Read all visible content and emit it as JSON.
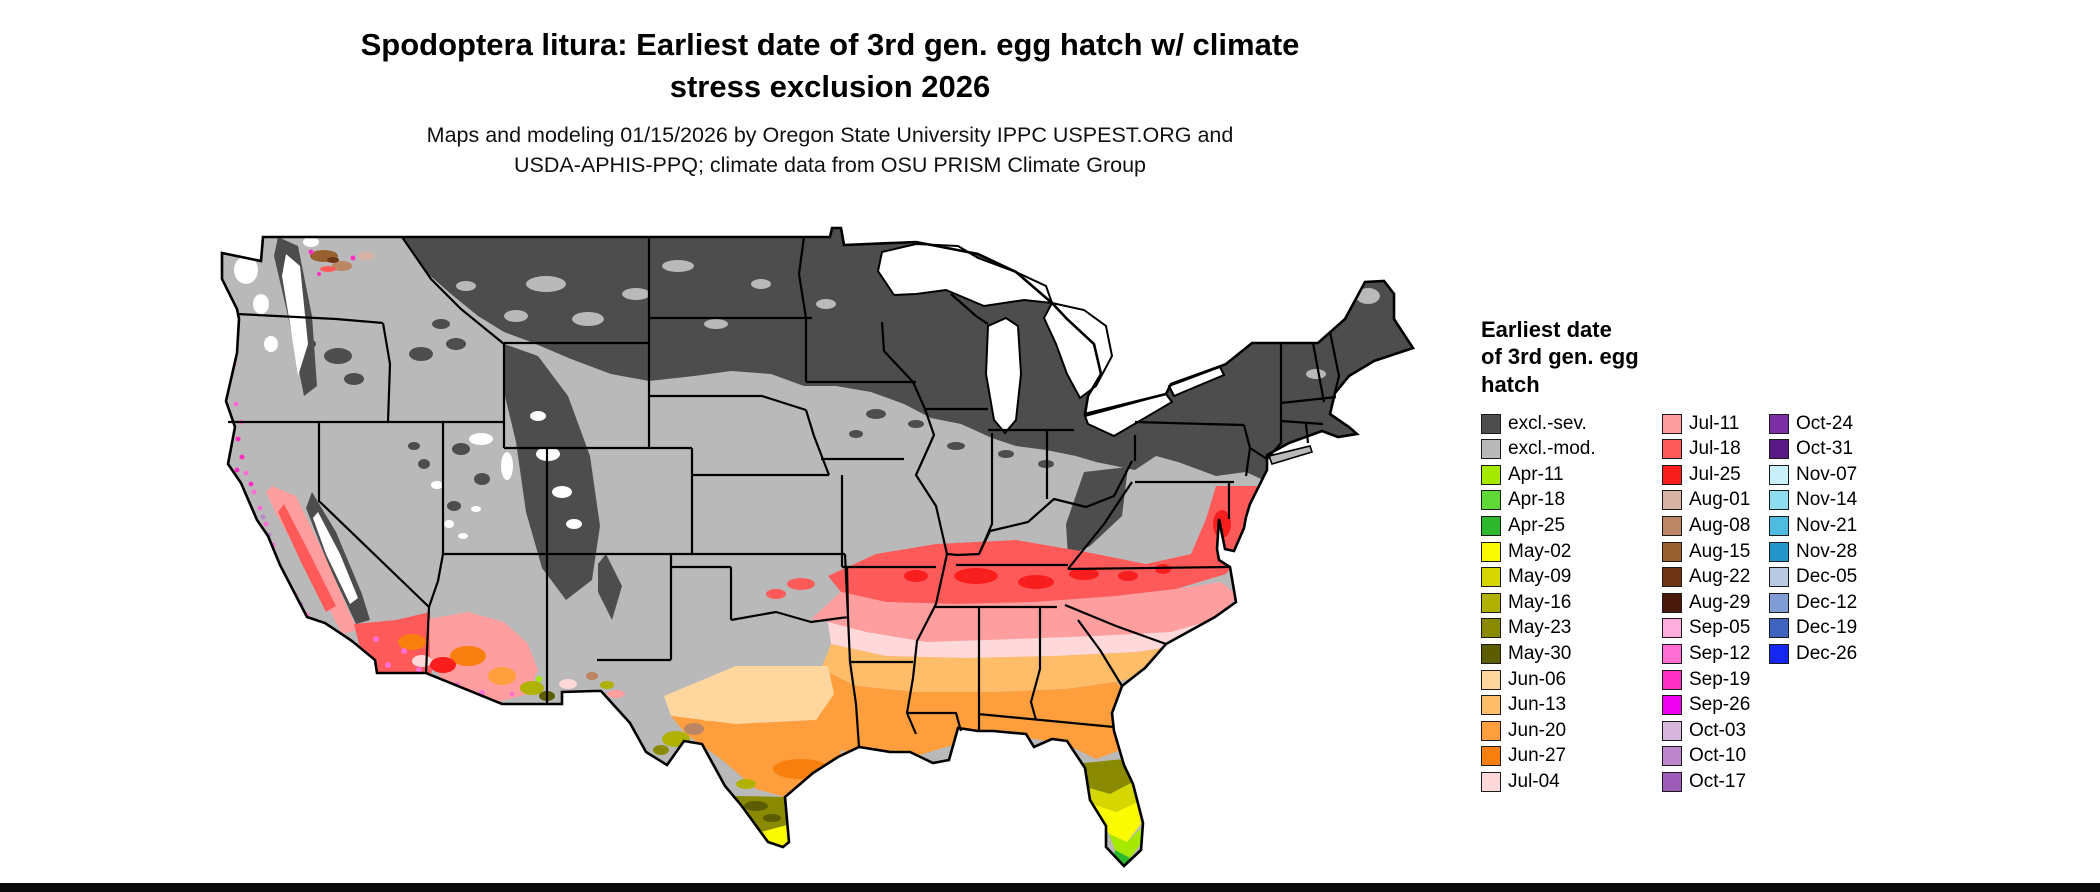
{
  "header": {
    "title_line1": "Spodoptera litura: Earliest date of 3rd gen. egg hatch w/ climate",
    "title_line2": "stress exclusion 2026",
    "subtitle_line1": "Maps and modeling 01/15/2026 by Oregon State University IPPC USPEST.ORG and",
    "subtitle_line2": "USDA-APHIS-PPQ; climate data from OSU PRISM Climate Group"
  },
  "legend": {
    "title_lines": [
      "Earliest date",
      "of 3rd gen. egg",
      "hatch"
    ],
    "columns": [
      {
        "items": [
          {
            "label": "excl.-sev.",
            "key": "excl_sev"
          },
          {
            "label": "excl.-mod.",
            "key": "excl_mod"
          },
          {
            "label": "Apr-11",
            "key": "apr11"
          },
          {
            "label": "Apr-18",
            "key": "apr18"
          },
          {
            "label": "Apr-25",
            "key": "apr25"
          },
          {
            "label": "May-02",
            "key": "may02"
          },
          {
            "label": "May-09",
            "key": "may09"
          },
          {
            "label": "May-16",
            "key": "may16"
          },
          {
            "label": "May-23",
            "key": "may23"
          },
          {
            "label": "May-30",
            "key": "may30"
          },
          {
            "label": "Jun-06",
            "key": "jun06"
          },
          {
            "label": "Jun-13",
            "key": "jun13"
          },
          {
            "label": "Jun-20",
            "key": "jun20"
          },
          {
            "label": "Jun-27",
            "key": "jun27"
          },
          {
            "label": "Jul-04",
            "key": "jul04"
          }
        ]
      },
      {
        "items": [
          {
            "label": "Jul-11",
            "key": "jul11"
          },
          {
            "label": "Jul-18",
            "key": "jul18"
          },
          {
            "label": "Jul-25",
            "key": "jul25"
          },
          {
            "label": "Aug-01",
            "key": "aug01"
          },
          {
            "label": "Aug-08",
            "key": "aug08"
          },
          {
            "label": "Aug-15",
            "key": "aug15"
          },
          {
            "label": "Aug-22",
            "key": "aug22"
          },
          {
            "label": "Aug-29",
            "key": "aug29"
          },
          {
            "label": "Sep-05",
            "key": "sep05"
          },
          {
            "label": "Sep-12",
            "key": "sep12"
          },
          {
            "label": "Sep-19",
            "key": "sep19"
          },
          {
            "label": "Sep-26",
            "key": "sep26"
          },
          {
            "label": "Oct-03",
            "key": "oct03"
          },
          {
            "label": "Oct-10",
            "key": "oct10"
          },
          {
            "label": "Oct-17",
            "key": "oct17"
          }
        ]
      },
      {
        "items": [
          {
            "label": "Oct-24",
            "key": "oct24"
          },
          {
            "label": "Oct-31",
            "key": "oct31"
          },
          {
            "label": "Nov-07",
            "key": "nov07"
          },
          {
            "label": "Nov-14",
            "key": "nov14"
          },
          {
            "label": "Nov-21",
            "key": "nov21"
          },
          {
            "label": "Nov-28",
            "key": "nov28"
          },
          {
            "label": "Dec-05",
            "key": "dec05"
          },
          {
            "label": "Dec-12",
            "key": "dec12"
          },
          {
            "label": "Dec-19",
            "key": "dec19"
          },
          {
            "label": "Dec-26",
            "key": "dec26"
          }
        ]
      }
    ]
  },
  "palette": {
    "excl_sev": "#4d4d4d",
    "excl_mod": "#b9b9b9",
    "apr11": "#a5e800",
    "apr18": "#5fd938",
    "apr25": "#2eb82e",
    "may02": "#fafa00",
    "may09": "#d6d600",
    "may16": "#b1b100",
    "may23": "#8a8a00",
    "may30": "#5c5c00",
    "jun06": "#ffd79e",
    "jun13": "#ffbc69",
    "jun20": "#ff9e3d",
    "jun27": "#f87e0e",
    "jul04": "#ffd9d9",
    "jul11": "#ff9e9e",
    "jul18": "#ff5a5a",
    "jul25": "#f81e1e",
    "aug01": "#d8b2a3",
    "aug08": "#bb8663",
    "aug15": "#98602f",
    "aug22": "#6f3517",
    "aug29": "#49190b",
    "sep05": "#ffaedd",
    "sep12": "#ff6ed0",
    "sep19": "#ff2fc4",
    "sep26": "#ef00ef",
    "oct03": "#d7b6dd",
    "oct10": "#bb86cb",
    "oct17": "#9c5cb8",
    "oct24": "#7c2fa5",
    "oct31": "#591a86",
    "nov07": "#c9f0fb",
    "nov14": "#8edcef",
    "nov21": "#4fbbdf",
    "nov28": "#2395c8",
    "dec05": "#bac9e2",
    "dec12": "#7f9cd4",
    "dec19": "#3f64c0",
    "dec26": "#1426f0"
  }
}
